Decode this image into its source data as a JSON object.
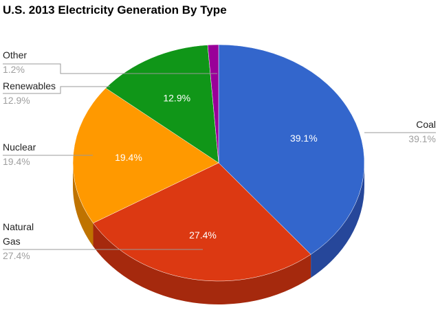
{
  "chart_data": {
    "type": "pie",
    "title": "U.S. 2013 Electricity Generation By Type",
    "slices": [
      {
        "name": "Coal",
        "value": 39.1,
        "label": "39.1%",
        "color": "#3366cc",
        "side_color": "#26479a"
      },
      {
        "name": "Natural Gas",
        "name_lines": [
          "Natural",
          "Gas"
        ],
        "value": 27.4,
        "label": "27.4%",
        "color": "#dc3912",
        "side_color": "#a5290d"
      },
      {
        "name": "Nuclear",
        "value": 19.4,
        "label": "19.4%",
        "color": "#ff9900",
        "side_color": "#bf7300"
      },
      {
        "name": "Renewables",
        "value": 12.9,
        "label": "12.9%",
        "color": "#109618",
        "side_color": "#0c7012"
      },
      {
        "name": "Other",
        "value": 1.2,
        "label": "1.2%",
        "color": "#990099",
        "side_color": "#730073"
      }
    ],
    "legend": "labeled"
  }
}
